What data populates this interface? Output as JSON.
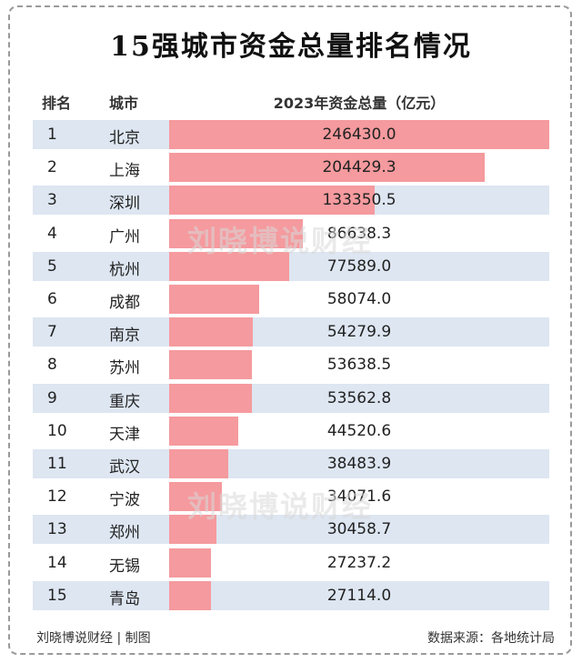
{
  "title": "15强城市资金总量排名情况",
  "headers": {
    "rank": "排名",
    "city": "城市",
    "total": "2023年资金总量（亿元）"
  },
  "watermark": "刘晓博说财经",
  "footer": {
    "left": "刘晓博说财经 | 制图",
    "right": "数据来源：各地统计局"
  },
  "colors": {
    "bar": "#f59a9e",
    "stripe": "#dde6f1"
  },
  "chart_data": {
    "type": "bar",
    "orientation": "horizontal",
    "title": "15强城市资金总量排名情况",
    "xlabel": "2023年资金总量（亿元）",
    "ranks": [
      "1",
      "2",
      "3",
      "4",
      "5",
      "6",
      "7",
      "8",
      "9",
      "10",
      "11",
      "12",
      "13",
      "14",
      "15"
    ],
    "categories": [
      "北京",
      "上海",
      "深圳",
      "广州",
      "杭州",
      "成都",
      "南京",
      "苏州",
      "重庆",
      "天津",
      "武汉",
      "宁波",
      "郑州",
      "无锡",
      "青岛"
    ],
    "values": [
      246430.0,
      204429.3,
      133350.5,
      86638.3,
      77589.0,
      58074.0,
      54279.9,
      53638.5,
      53562.8,
      44520.6,
      38483.9,
      34071.6,
      30458.7,
      27237.2,
      27114.0
    ],
    "labels": [
      "246430.0",
      "204429.3",
      "133350.5",
      "86638.3",
      "77589.0",
      "58074.0",
      "54279.9",
      "53638.5",
      "53562.8",
      "44520.6",
      "38483.9",
      "34071.6",
      "30458.7",
      "27237.2",
      "27114.0"
    ],
    "xlim": [
      0,
      246430.0
    ]
  }
}
